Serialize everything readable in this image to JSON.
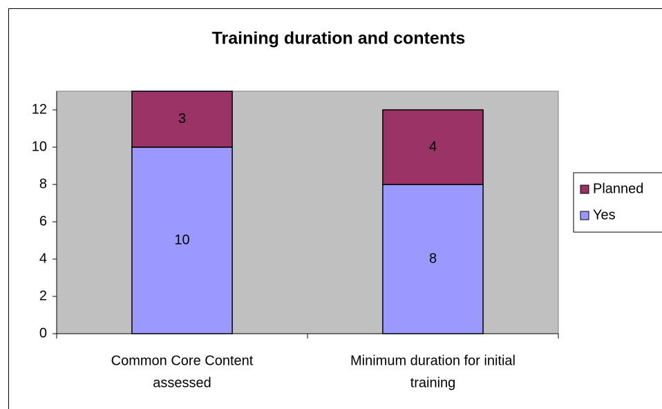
{
  "chart_data": {
    "type": "stacked_bar",
    "title": "Training duration and contents",
    "categories": [
      [
        "Common Core Content",
        "assessed"
      ],
      [
        "Minimum duration for initial",
        "training"
      ]
    ],
    "series": [
      {
        "name": "Yes",
        "color": "#9999ff",
        "values": [
          10,
          8
        ]
      },
      {
        "name": "Planned",
        "color": "#993366",
        "values": [
          3,
          4
        ]
      }
    ],
    "ylim": [
      0,
      13
    ],
    "yticks": [
      0,
      2,
      4,
      6,
      8,
      10,
      12
    ],
    "plot_background": "#c0c0c0",
    "legend": "right"
  }
}
